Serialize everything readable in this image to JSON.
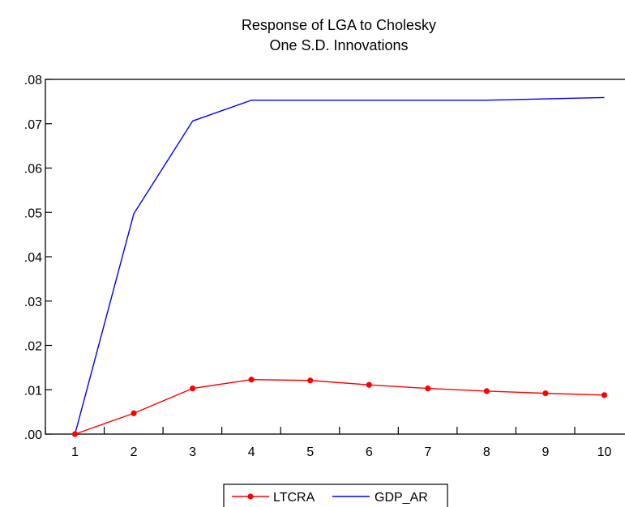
{
  "chart_data": {
    "type": "line",
    "title_line1": "Response of LGA to Cholesky",
    "title_line2": "One S.D. Innovations",
    "xlabel": "",
    "ylabel": "",
    "x": [
      1,
      2,
      3,
      4,
      5,
      6,
      7,
      8,
      9,
      10
    ],
    "x_tick_labels": [
      "1",
      "2",
      "3",
      "4",
      "5",
      "6",
      "7",
      "8",
      "9",
      "10"
    ],
    "ylim": [
      0,
      0.08
    ],
    "y_ticks": [
      0,
      0.01,
      0.02,
      0.03,
      0.04,
      0.05,
      0.06,
      0.07,
      0.08
    ],
    "y_tick_labels": [
      ".00",
      ".01",
      ".02",
      ".03",
      ".04",
      ".05",
      ".06",
      ".07",
      ".08"
    ],
    "grid": false,
    "legend_position": "bottom-center",
    "series": [
      {
        "name": "LTCRA",
        "color": "#ff0000",
        "marker": "circle",
        "values": [
          0.0,
          0.0047,
          0.0103,
          0.0123,
          0.0121,
          0.0111,
          0.0103,
          0.0097,
          0.0092,
          0.0088
        ]
      },
      {
        "name": "GDP_AR",
        "color": "#0000ff",
        "marker": "none",
        "values": [
          0.0,
          0.0497,
          0.0706,
          0.0753,
          0.0753,
          0.0753,
          0.0753,
          0.0753,
          0.0756,
          0.0759
        ]
      }
    ]
  }
}
